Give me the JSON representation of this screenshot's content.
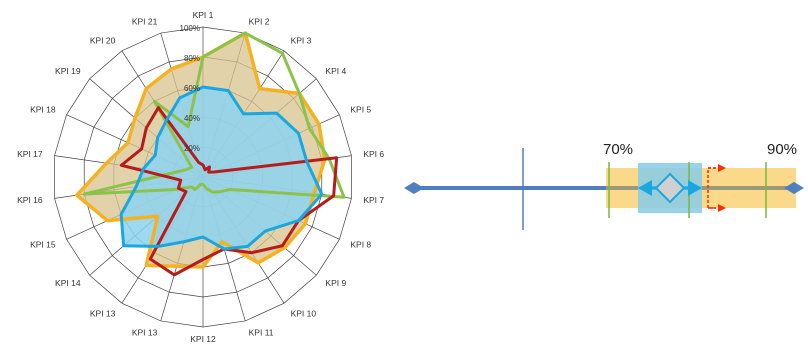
{
  "chart_data": [
    {
      "type": "radar",
      "categories": [
        "KPI 1",
        "KPI 2",
        "KPI 3",
        "KPI 4",
        "KPI 5",
        "KPI 6",
        "KPI 7",
        "KPI 8",
        "KPI 9",
        "KPI 10",
        "KPI 11",
        "KPI 12",
        "KPI 13",
        "KPI 13",
        "KPI 14",
        "KPI 15",
        "KPI 16",
        "KPI 17",
        "KPI 18",
        "KPI 19",
        "KPI 20",
        "KPI 21"
      ],
      "rlim": [
        0,
        100
      ],
      "rticks": [
        "20%",
        "40%",
        "60%",
        "80%",
        "100%"
      ],
      "grid": true,
      "series": [
        {
          "color": "#F5B120",
          "fill": "#D8C38E",
          "values": [
            80,
            100,
            70,
            85,
            85,
            82,
            75,
            75,
            72,
            68,
            45,
            60,
            62,
            70,
            40,
            70,
            85,
            65,
            55,
            60,
            70,
            75
          ]
        },
        {
          "color": "#8BC34A",
          "values": [
            80,
            100,
            98,
            85,
            78,
            85,
            95,
            20,
            15,
            12,
            8,
            5,
            5,
            10,
            10,
            20,
            80,
            20,
            12,
            10,
            60,
            35
          ]
        },
        {
          "color": "#B71C1C",
          "values": [
            8,
            5,
            8,
            5,
            8,
            90,
            88,
            70,
            70,
            60,
            50,
            55,
            68,
            65,
            15,
            18,
            15,
            55,
            45,
            50,
            55,
            10
          ]
        },
        {
          "color": "#1AA7E0",
          "fill": "#8CD3F0",
          "values": [
            60,
            60,
            50,
            65,
            70,
            70,
            80,
            70,
            55,
            55,
            50,
            40,
            45,
            55,
            70,
            60,
            45,
            40,
            35,
            40,
            45,
            55
          ]
        }
      ]
    },
    {
      "type": "range-scale",
      "labels": {
        "low": "70%",
        "high": "90%"
      },
      "colors": {
        "axis": "#4F7FC0",
        "band": "#FAD98A",
        "inner_band": "#85CBE8",
        "needle": "#1AA7E0",
        "marker": "#D0D0D0",
        "target": "#FF2A00",
        "limit": "#78B93C"
      }
    }
  ]
}
